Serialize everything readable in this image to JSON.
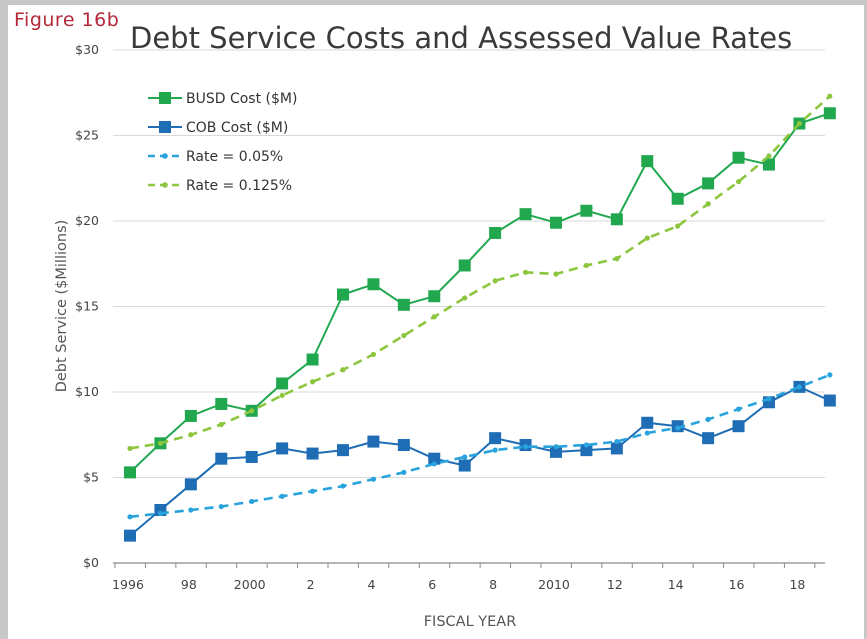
{
  "figure_label": "Figure 16b",
  "chart_data": {
    "type": "line",
    "title": "Debt Service Costs and Assessed Value Rates",
    "xlabel": "FISCAL YEAR",
    "ylabel": "Debt Service ($Millions)",
    "x": [
      1996,
      1997,
      1998,
      1999,
      2000,
      2001,
      2002,
      2003,
      2004,
      2005,
      2006,
      2007,
      2008,
      2009,
      2010,
      2011,
      2012,
      2013,
      2014,
      2015,
      2016,
      2017,
      2018,
      2019
    ],
    "xlim": [
      1996,
      2019.4
    ],
    "ylim": [
      0,
      30
    ],
    "x_ticks": [
      {
        "x": 1996,
        "label": "1996"
      },
      {
        "x": 1998,
        "label": "98"
      },
      {
        "x": 2000,
        "label": "2000"
      },
      {
        "x": 2002,
        "label": "2"
      },
      {
        "x": 2004,
        "label": "4"
      },
      {
        "x": 2006,
        "label": "6"
      },
      {
        "x": 2008,
        "label": "8"
      },
      {
        "x": 2010,
        "label": "2010"
      },
      {
        "x": 2012,
        "label": "12"
      },
      {
        "x": 2014,
        "label": "14"
      },
      {
        "x": 2016,
        "label": "16"
      },
      {
        "x": 2018,
        "label": "18"
      }
    ],
    "y_ticks": [
      {
        "y": 0,
        "label": "$0"
      },
      {
        "y": 5,
        "label": "$5"
      },
      {
        "y": 10,
        "label": "$10"
      },
      {
        "y": 15,
        "label": "$15"
      },
      {
        "y": 20,
        "label": "$20"
      },
      {
        "y": 25,
        "label": "$25"
      },
      {
        "y": 30,
        "label": "$30"
      }
    ],
    "grid": true,
    "legend_position": "top-left",
    "series": [
      {
        "name": "BUSD Cost ($M)",
        "color": "#21a84f",
        "style": "solid",
        "marker": "square",
        "values": [
          5.3,
          7.0,
          8.6,
          9.3,
          8.9,
          10.5,
          11.9,
          15.7,
          16.3,
          15.1,
          15.6,
          17.4,
          19.3,
          20.4,
          19.9,
          20.6,
          20.1,
          23.5,
          21.3,
          22.2,
          23.7,
          23.3,
          25.7,
          26.3
        ]
      },
      {
        "name": "COB Cost ($M)",
        "color": "#1f6db5",
        "style": "solid",
        "marker": "square",
        "values": [
          1.6,
          3.1,
          4.6,
          6.1,
          6.2,
          6.7,
          6.4,
          6.6,
          7.1,
          6.9,
          6.1,
          5.7,
          7.3,
          6.9,
          6.5,
          6.6,
          6.7,
          8.2,
          8.0,
          7.3,
          8.0,
          9.4,
          10.3,
          9.5
        ]
      },
      {
        "name": "Rate = 0.05%",
        "color": "#29a3dd",
        "style": "dashed",
        "marker": "dot",
        "values": [
          2.7,
          2.9,
          3.1,
          3.3,
          3.6,
          3.9,
          4.2,
          4.5,
          4.9,
          5.3,
          5.8,
          6.2,
          6.6,
          6.8,
          6.8,
          6.9,
          7.1,
          7.6,
          7.9,
          8.4,
          9.0,
          9.6,
          10.3,
          11.0
        ]
      },
      {
        "name": "Rate = 0.125%",
        "color": "#8cc63e",
        "style": "dashed",
        "marker": "dot",
        "values": [
          6.7,
          7.0,
          7.5,
          8.1,
          8.9,
          9.8,
          10.6,
          11.3,
          12.2,
          13.3,
          14.4,
          15.5,
          16.5,
          17.0,
          16.9,
          17.4,
          17.8,
          19.0,
          19.7,
          21.0,
          22.3,
          23.8,
          25.7,
          27.3
        ]
      }
    ]
  }
}
